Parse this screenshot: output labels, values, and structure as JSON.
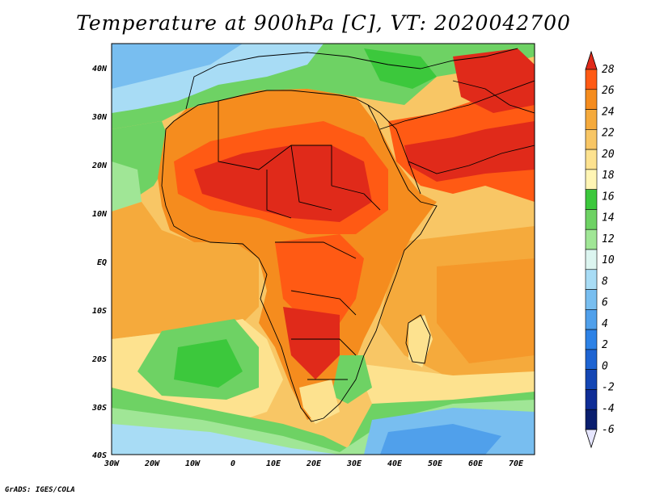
{
  "title": "Temperature at 900hPa [C], VT: 2020042700",
  "credit": "GrADS: IGES/COLA",
  "map": {
    "region": "Africa",
    "variable": "Temperature at 900hPa",
    "units": "C",
    "lat_ticks": [
      "40N",
      "30N",
      "20N",
      "10N",
      "EQ",
      "10S",
      "20S",
      "30S",
      "40S"
    ],
    "lon_ticks": [
      "30W",
      "20W",
      "10W",
      "0",
      "10E",
      "20E",
      "30E",
      "40E",
      "50E",
      "60E",
      "70E"
    ]
  },
  "colorbar": {
    "labels": [
      "28",
      "26",
      "24",
      "22",
      "20",
      "18",
      "16",
      "14",
      "12",
      "10",
      "8",
      "6",
      "4",
      "2",
      "0",
      "-2",
      "-4",
      "-6"
    ],
    "colors": [
      "#e02a1a",
      "#ff5a14",
      "#f58c1e",
      "#f5aa3c",
      "#f8c665",
      "#fde28f",
      "#fff5b4",
      "#3cc83c",
      "#6ed264",
      "#a0e696",
      "#dcf5f0",
      "#a8dcf5",
      "#78bef0",
      "#50a0eb",
      "#2d82e6",
      "#1e64d2",
      "#1446b4",
      "#0f2d96",
      "#0a1e6e",
      "#e6e6ff"
    ]
  }
}
